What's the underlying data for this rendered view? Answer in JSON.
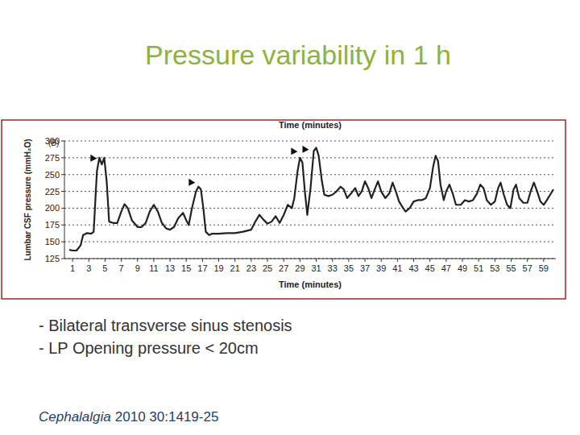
{
  "slide": {
    "title": "Pressure variability in 1 h",
    "bullets": [
      "- Bilateral transverse sinus stenosis",
      "- LP Opening pressure < 20cm"
    ],
    "citation": {
      "journal": "Cephalalgia",
      "details": "2010 30:1419-25"
    }
  },
  "chart_data": {
    "type": "line",
    "annotations": [
      "(B)"
    ],
    "x_label": "Time (minutes)",
    "y_label": "Lumbar CSF pressure (mmH₂O)",
    "x": [
      0.6,
      1,
      1.5,
      2,
      2.3,
      2.8,
      3.3,
      3.6,
      3.8,
      4.0,
      4.3,
      4.6,
      4.9,
      5.2,
      5.5,
      6,
      6.5,
      7,
      7.4,
      7.8,
      8.3,
      9,
      9.5,
      10,
      10.5,
      11,
      11.5,
      12,
      12.5,
      13,
      13.5,
      14,
      14.6,
      15,
      15.3,
      15.7,
      16.2,
      16.5,
      16.8,
      17.1,
      17.4,
      17.8,
      18.2,
      19,
      20,
      21,
      22,
      23,
      23.5,
      24,
      24.5,
      25,
      25.5,
      26,
      26.5,
      27,
      27.5,
      28,
      28.3,
      28.7,
      29,
      29.3,
      29.6,
      29.9,
      30.3,
      30.7,
      31,
      31.3,
      31.7,
      32,
      32.5,
      33,
      33.5,
      34,
      34.4,
      34.8,
      35.3,
      35.8,
      36.2,
      36.6,
      37,
      37.4,
      37.8,
      38.2,
      38.6,
      39,
      39.5,
      40,
      40.4,
      40.8,
      41.2,
      41.7,
      42,
      42.5,
      43,
      43.5,
      44,
      44.5,
      45,
      45.4,
      45.7,
      46,
      46.3,
      46.7,
      47,
      47.4,
      47.8,
      48.2,
      48.8,
      49.3,
      49.8,
      50.3,
      50.8,
      51.2,
      51.6,
      52,
      52.5,
      53,
      53.4,
      53.7,
      54.1,
      54.5,
      54.9,
      55.3,
      55.6,
      56,
      56.5,
      57,
      57.4,
      57.8,
      58.2,
      58.6,
      59,
      59.4,
      59.8,
      60.2
    ],
    "values": [
      138,
      137,
      137,
      145,
      160,
      163,
      162,
      165,
      210,
      255,
      275,
      265,
      275,
      240,
      180,
      178,
      178,
      195,
      206,
      200,
      182,
      172,
      172,
      178,
      195,
      205,
      195,
      178,
      170,
      168,
      172,
      185,
      193,
      182,
      175,
      200,
      225,
      232,
      228,
      200,
      165,
      160,
      162,
      162,
      163,
      163,
      165,
      168,
      180,
      190,
      183,
      177,
      180,
      188,
      178,
      190,
      205,
      200,
      215,
      255,
      275,
      268,
      225,
      190,
      230,
      285,
      290,
      278,
      240,
      220,
      218,
      220,
      225,
      232,
      228,
      215,
      222,
      230,
      218,
      225,
      240,
      230,
      215,
      228,
      240,
      225,
      215,
      222,
      238,
      225,
      210,
      200,
      195,
      200,
      210,
      212,
      212,
      215,
      230,
      262,
      278,
      270,
      235,
      212,
      225,
      235,
      222,
      205,
      205,
      212,
      210,
      212,
      222,
      235,
      230,
      212,
      205,
      210,
      230,
      238,
      220,
      205,
      200,
      228,
      235,
      215,
      208,
      208,
      225,
      238,
      225,
      210,
      205,
      212,
      220,
      228
    ],
    "color": "#222222",
    "xlim": [
      0,
      60.5
    ],
    "ylim": [
      125,
      300
    ],
    "xticks": [
      1,
      3,
      5,
      7,
      9,
      11,
      13,
      15,
      17,
      19,
      21,
      23,
      25,
      27,
      29,
      31,
      33,
      35,
      37,
      39,
      41,
      43,
      45,
      47,
      49,
      51,
      53,
      55,
      57,
      59
    ],
    "yticks": [
      125,
      150,
      175,
      200,
      225,
      250,
      275,
      300
    ],
    "grid": true,
    "arrows": [
      {
        "x": 4,
        "y": 274
      },
      {
        "x": 16.1,
        "y": 238
      },
      {
        "x": 28.7,
        "y": 284
      },
      {
        "x": 30.1,
        "y": 287
      }
    ]
  }
}
